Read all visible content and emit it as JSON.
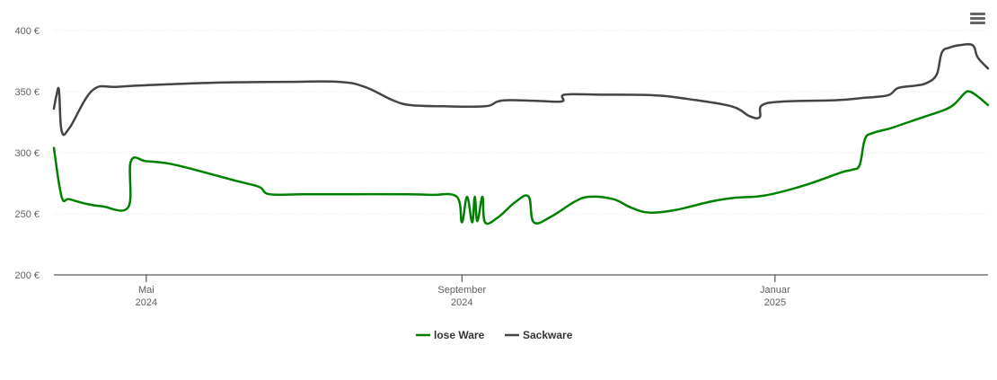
{
  "menu": {
    "icon": "hamburger-menu-icon"
  },
  "chart_data": {
    "type": "line",
    "title": "",
    "xlabel": "",
    "ylabel": "",
    "y_unit": "€",
    "ylim": [
      200,
      400
    ],
    "y_ticks": [
      {
        "value": 400,
        "label": "400 €"
      },
      {
        "value": 350,
        "label": "350 €"
      },
      {
        "value": 300,
        "label": "300 €"
      },
      {
        "value": 250,
        "label": "250 €"
      },
      {
        "value": 200,
        "label": "200 €"
      }
    ],
    "xlim": [
      "2024-03-26",
      "2025-03-25"
    ],
    "x_ticks": [
      {
        "date": "2024-05-01",
        "month": "Mai",
        "year": "2024"
      },
      {
        "date": "2024-09-01",
        "month": "September",
        "year": "2024"
      },
      {
        "date": "2025-01-01",
        "month": "Januar",
        "year": "2025"
      }
    ],
    "grid": true,
    "legend_position": "bottom-center",
    "series": [
      {
        "name": "lose Ware",
        "color": "#008000",
        "points": [
          [
            "2024-03-26",
            304
          ],
          [
            "2024-03-29",
            264
          ],
          [
            "2024-04-01",
            262
          ],
          [
            "2024-04-08",
            258
          ],
          [
            "2024-04-14",
            256
          ],
          [
            "2024-04-24",
            255.5
          ],
          [
            "2024-04-25",
            293
          ],
          [
            "2024-05-01",
            293
          ],
          [
            "2024-05-10",
            291
          ],
          [
            "2024-05-20",
            286
          ],
          [
            "2024-06-05",
            277
          ],
          [
            "2024-06-14",
            272
          ],
          [
            "2024-06-18",
            266
          ],
          [
            "2024-07-01",
            266
          ],
          [
            "2024-07-20",
            266
          ],
          [
            "2024-08-10",
            266
          ],
          [
            "2024-08-20",
            265.5
          ],
          [
            "2024-08-30",
            264
          ],
          [
            "2024-09-01",
            243
          ],
          [
            "2024-09-03",
            264
          ],
          [
            "2024-09-05",
            243
          ],
          [
            "2024-09-06",
            264
          ],
          [
            "2024-09-07",
            244
          ],
          [
            "2024-09-09",
            264
          ],
          [
            "2024-09-10",
            243
          ],
          [
            "2024-09-15",
            247
          ],
          [
            "2024-09-22",
            260
          ],
          [
            "2024-09-27",
            264
          ],
          [
            "2024-09-29",
            243
          ],
          [
            "2024-10-06",
            248
          ],
          [
            "2024-10-15",
            260
          ],
          [
            "2024-10-21",
            264
          ],
          [
            "2024-10-30",
            262
          ],
          [
            "2024-11-06",
            255
          ],
          [
            "2024-11-13",
            251
          ],
          [
            "2024-11-23",
            253
          ],
          [
            "2024-12-07",
            260
          ],
          [
            "2024-12-16",
            263
          ],
          [
            "2024-12-28",
            265
          ],
          [
            "2025-01-12",
            273
          ],
          [
            "2025-01-27",
            284
          ],
          [
            "2025-01-31",
            286
          ],
          [
            "2025-02-03",
            290
          ],
          [
            "2025-02-05",
            311
          ],
          [
            "2025-02-08",
            316
          ],
          [
            "2025-02-15",
            320
          ],
          [
            "2025-02-22",
            325
          ],
          [
            "2025-03-01",
            330
          ],
          [
            "2025-03-08",
            335
          ],
          [
            "2025-03-12",
            340
          ],
          [
            "2025-03-16",
            349
          ],
          [
            "2025-03-18",
            350
          ],
          [
            "2025-03-21",
            346
          ],
          [
            "2025-03-25",
            339
          ]
        ]
      },
      {
        "name": "Sackware",
        "color": "#434348",
        "points": [
          [
            "2024-03-26",
            336
          ],
          [
            "2024-03-27",
            347
          ],
          [
            "2024-03-28",
            351
          ],
          [
            "2024-03-29",
            318
          ],
          [
            "2024-04-01",
            320
          ],
          [
            "2024-04-10",
            351
          ],
          [
            "2024-04-20",
            354
          ],
          [
            "2024-05-10",
            356
          ],
          [
            "2024-06-01",
            357.5
          ],
          [
            "2024-06-25",
            358
          ],
          [
            "2024-07-15",
            358
          ],
          [
            "2024-07-25",
            354
          ],
          [
            "2024-08-05",
            343
          ],
          [
            "2024-08-12",
            339
          ],
          [
            "2024-08-25",
            338
          ],
          [
            "2024-09-10",
            338
          ],
          [
            "2024-09-15",
            342
          ],
          [
            "2024-09-20",
            343
          ],
          [
            "2024-09-30",
            342.5
          ],
          [
            "2024-10-10",
            342
          ],
          [
            "2024-10-11",
            347.5
          ],
          [
            "2024-10-25",
            347.5
          ],
          [
            "2024-11-15",
            347
          ],
          [
            "2024-11-28",
            344
          ],
          [
            "2024-12-15",
            338
          ],
          [
            "2024-12-22",
            330
          ],
          [
            "2024-12-26",
            329
          ],
          [
            "2024-12-27",
            339
          ],
          [
            "2025-01-05",
            342
          ],
          [
            "2025-01-25",
            343
          ],
          [
            "2025-02-05",
            345
          ],
          [
            "2025-02-14",
            347
          ],
          [
            "2025-02-18",
            353
          ],
          [
            "2025-02-25",
            355
          ],
          [
            "2025-03-01",
            357
          ],
          [
            "2025-03-05",
            364
          ],
          [
            "2025-03-07",
            382
          ],
          [
            "2025-03-10",
            386
          ],
          [
            "2025-03-14",
            388
          ],
          [
            "2025-03-19",
            388
          ],
          [
            "2025-03-21",
            378
          ],
          [
            "2025-03-25",
            369
          ]
        ]
      }
    ]
  }
}
